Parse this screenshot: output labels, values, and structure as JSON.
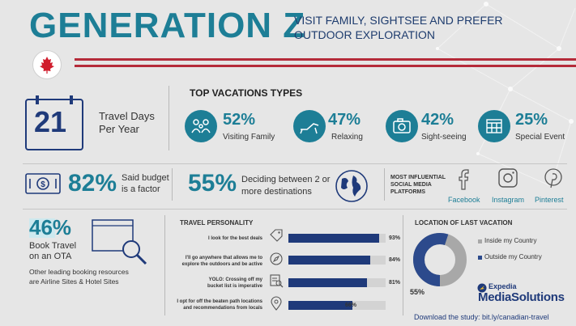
{
  "title": "GENERATION Z",
  "subtitle": "VISIT FAMILY, SIGHTSEE AND PREFER OUTDOOR EXPLORATION",
  "travel_days": {
    "value": "21",
    "label_line1": "Travel Days",
    "label_line2": "Per Year"
  },
  "top_vacations": {
    "heading": "TOP VACATIONS TYPES",
    "items": [
      {
        "pct": "52%",
        "label": "Visiting Family",
        "icon": "family-icon"
      },
      {
        "pct": "47%",
        "label": "Relaxing",
        "icon": "lounge-chair-icon"
      },
      {
        "pct": "42%",
        "label": "Sight-seeing",
        "icon": "camera-icon"
      },
      {
        "pct": "25%",
        "label": "Special Event",
        "icon": "calendar-icon"
      }
    ]
  },
  "budget": {
    "pct": "82%",
    "line1": "Said budget",
    "line2": "is a factor"
  },
  "destinations": {
    "pct": "55%",
    "line1": "Deciding between 2 or",
    "line2": "more destinations"
  },
  "social": {
    "heading_line1": "MOST INFLUENTIAL",
    "heading_line2": "SOCIAL MEDIA",
    "heading_line3": "PLATFORMS",
    "items": [
      {
        "label": "Facebook",
        "icon": "facebook-icon"
      },
      {
        "label": "Instagram",
        "icon": "instagram-icon"
      },
      {
        "label": "Pinterest",
        "icon": "pinterest-icon"
      }
    ]
  },
  "ota": {
    "pct": "46%",
    "line1": "Book Travel",
    "line2": "on an OTA",
    "note_line1": "Other leading booking resources",
    "note_line2": "are Airline Sites & Hotel Sites"
  },
  "personality": {
    "heading": "TRAVEL PERSONALITY",
    "items": [
      {
        "line1": "I look for the best deals",
        "line2": "",
        "value": 93,
        "label": "93%",
        "icon": "tag-icon"
      },
      {
        "line1": "I'll go anywhere that allows me to",
        "line2": "explore the outdoors and be active",
        "value": 84,
        "label": "84%",
        "icon": "compass-icon"
      },
      {
        "line1": "YOLO: Crossing off my",
        "line2": "bucket list is imperative",
        "value": 81,
        "label": "81%",
        "icon": "checklist-icon"
      },
      {
        "line1": "I opt for off the beaten path locations",
        "line2": "and recommendations from locals",
        "value": 66,
        "label": "66%",
        "icon": "location-pin-icon"
      }
    ]
  },
  "location": {
    "heading": "LOCATION OF LAST VACATION",
    "legend_inside": "Inside my Country",
    "legend_outside": "Outside my Country",
    "pct_label": "55%",
    "outside_pct": 55,
    "inside_color": "#a8a8a8",
    "outside_color": "#2c4a8c"
  },
  "brand": {
    "line1": "Expedia",
    "line2": "MediaSolutions"
  },
  "download": "Download the study: bit.ly/canadian-travel",
  "colors": {
    "teal": "#1d7e96",
    "navy": "#1f3a7a",
    "red": "#b52b3a"
  }
}
